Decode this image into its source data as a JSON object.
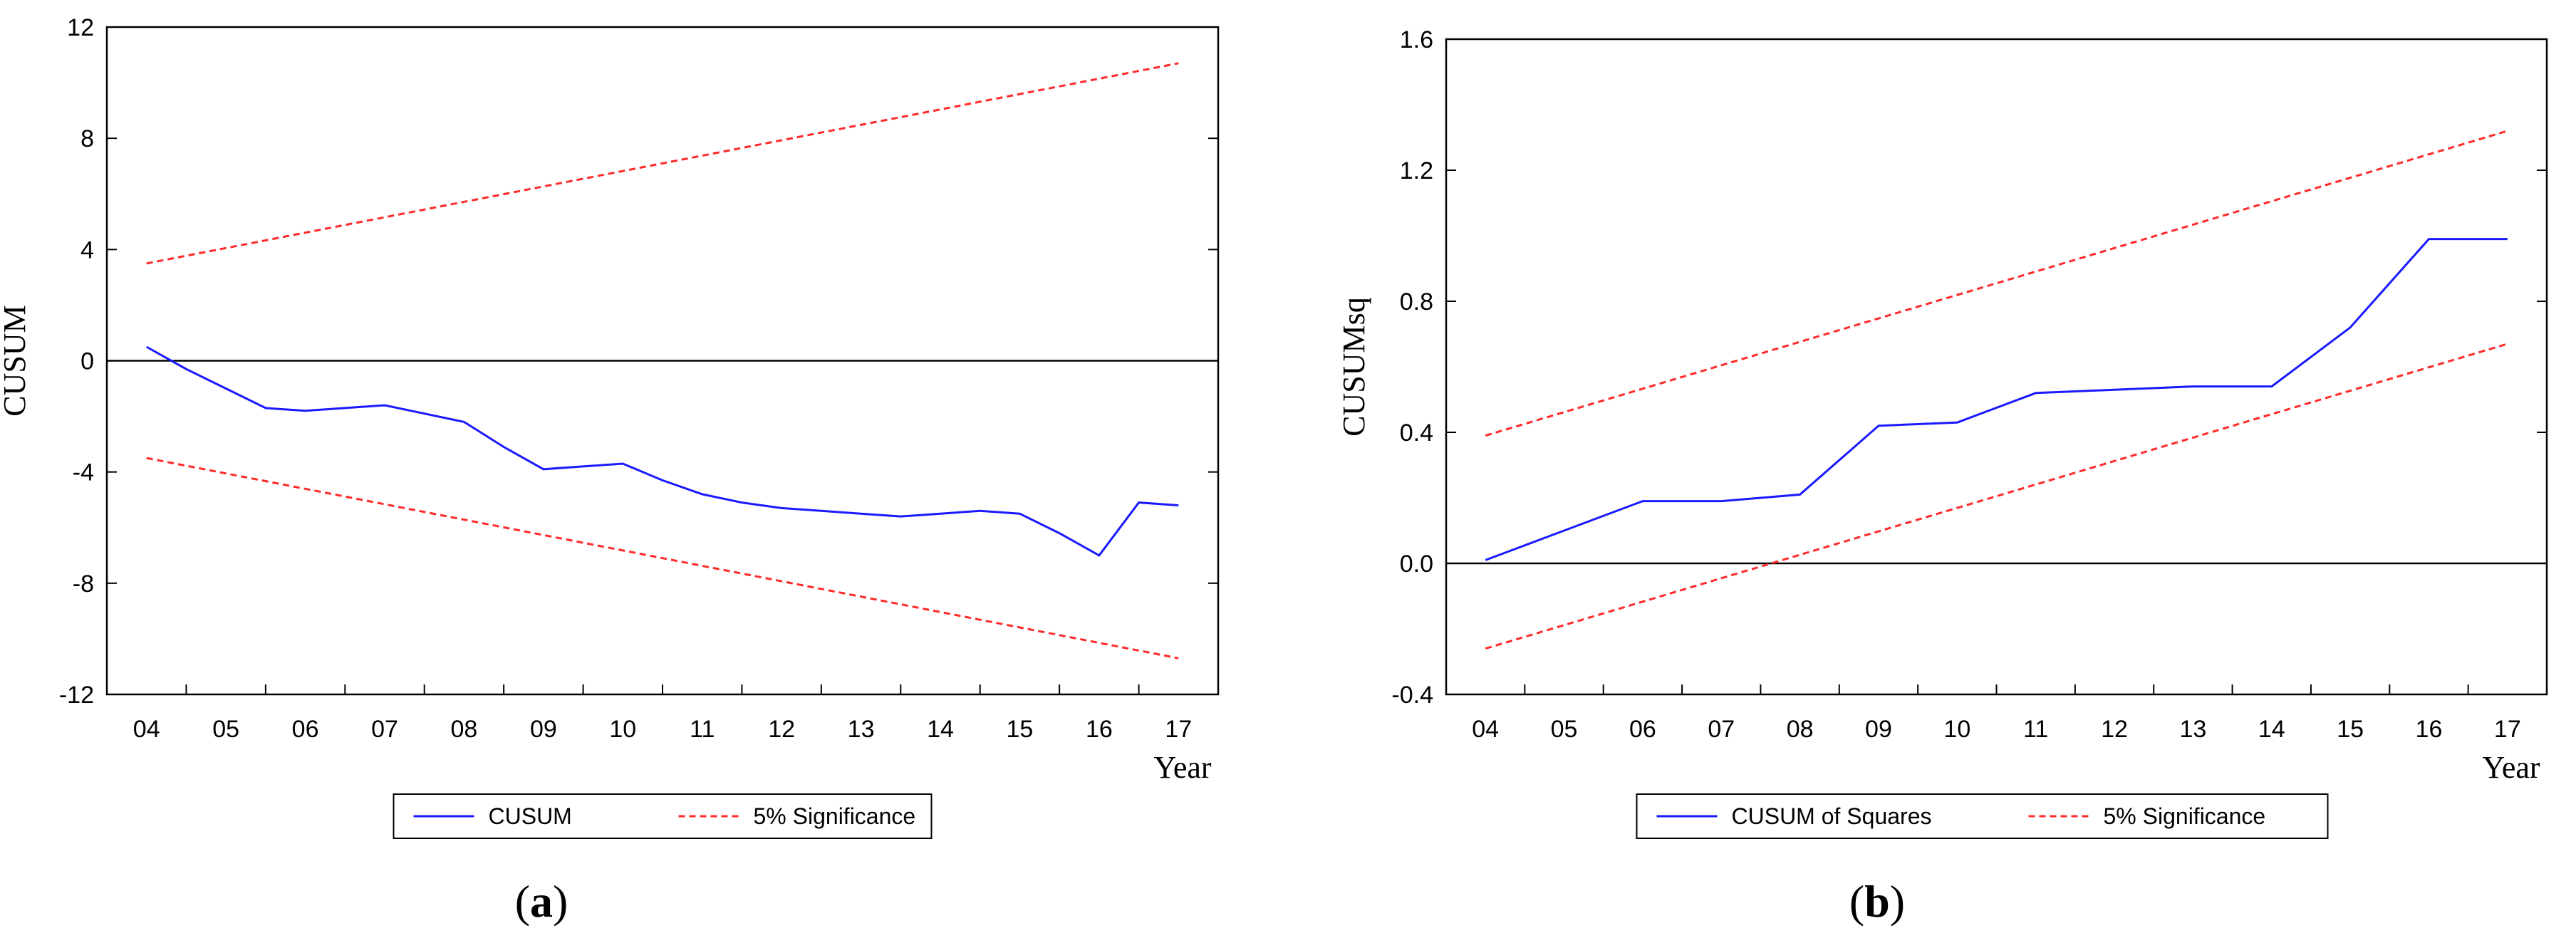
{
  "chart_data": [
    {
      "type": "line",
      "panel_label": "a",
      "ylabel": "CUSUM",
      "xlabel": "Year",
      "ylim": [
        -12,
        12
      ],
      "yticks": [
        12,
        8,
        4,
        0,
        -4,
        -8,
        -12
      ],
      "ytick_labels": [
        "12",
        "8",
        "4",
        "0",
        "-4",
        "-8",
        "-12"
      ],
      "x_categories": [
        "04",
        "05",
        "06",
        "07",
        "08",
        "09",
        "10",
        "11",
        "12",
        "13",
        "14",
        "15",
        "16",
        "17"
      ],
      "zero_line": 0,
      "legend": [
        "CUSUM",
        "5% Significance"
      ],
      "legend_position": "bottom-center",
      "series": [
        {
          "name": "CUSUM",
          "style": "solid",
          "color": "#1a1aff",
          "x": [
            0,
            0.5,
            1,
            1.5,
            2,
            2.5,
            3,
            3.5,
            4,
            4.5,
            5,
            5.5,
            6,
            6.5,
            7,
            7.5,
            8,
            8.5,
            9,
            9.5,
            10,
            10.5,
            11,
            11.5,
            12,
            12.5,
            13
          ],
          "y": [
            0.5,
            -0.3,
            -1.0,
            -1.7,
            -1.8,
            -1.7,
            -1.6,
            -1.9,
            -2.2,
            -3.1,
            -3.9,
            -3.8,
            -3.7,
            -4.3,
            -4.8,
            -5.1,
            -5.3,
            -5.4,
            -5.5,
            -5.6,
            -5.5,
            -5.4,
            -5.5,
            -6.2,
            -7.0,
            -5.1,
            -5.2
          ]
        },
        {
          "name": "5% Significance",
          "style": "dashed",
          "color": "#ff2a2a",
          "x": [
            0,
            13
          ],
          "y": [
            3.5,
            10.7
          ]
        },
        {
          "name": "5% Significance lower",
          "style": "dashed",
          "color": "#ff2a2a",
          "x": [
            0,
            13
          ],
          "y": [
            -3.5,
            -10.7
          ]
        }
      ]
    },
    {
      "type": "line",
      "panel_label": "b",
      "ylabel": "CUSUMsq",
      "xlabel": "Year",
      "ylim": [
        -0.4,
        1.6
      ],
      "yticks": [
        1.6,
        1.2,
        0.8,
        0.4,
        0.0,
        -0.4
      ],
      "ytick_labels": [
        "1.6",
        "1.2",
        "0.8",
        "0.4",
        "0.0",
        "-0.4"
      ],
      "x_categories": [
        "04",
        "05",
        "06",
        "07",
        "08",
        "09",
        "10",
        "11",
        "12",
        "13",
        "14",
        "15",
        "16",
        "17"
      ],
      "zero_line": 0,
      "legend": [
        "CUSUM of Squares",
        "5% Significance"
      ],
      "legend_position": "bottom-center",
      "series": [
        {
          "name": "CUSUM of Squares",
          "style": "solid",
          "color": "#1a1aff",
          "x": [
            0,
            1,
            2,
            3,
            4,
            5,
            6,
            7,
            8,
            9,
            10,
            11,
            12,
            13
          ],
          "y": [
            0.01,
            0.1,
            0.19,
            0.19,
            0.21,
            0.42,
            0.43,
            0.52,
            0.53,
            0.54,
            0.54,
            0.72,
            0.99,
            0.99
          ]
        },
        {
          "name": "5% Significance",
          "style": "dashed",
          "color": "#ff2a2a",
          "x": [
            0,
            13
          ],
          "y": [
            0.39,
            1.32
          ]
        },
        {
          "name": "5% Significance lower",
          "style": "dashed",
          "color": "#ff2a2a",
          "x": [
            0,
            13
          ],
          "y": [
            -0.26,
            0.67
          ]
        }
      ]
    }
  ]
}
